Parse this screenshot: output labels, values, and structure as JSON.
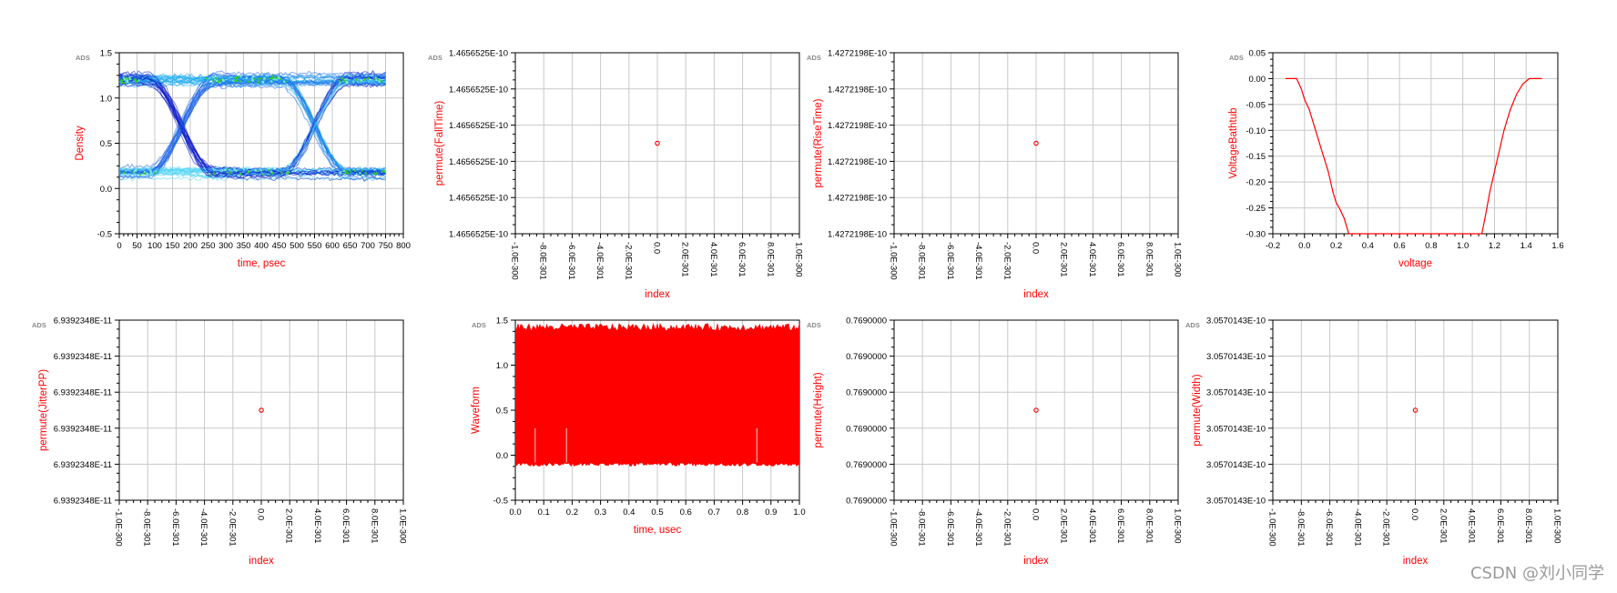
{
  "brand": "ADS",
  "watermark": "CSDN @刘小同学",
  "colors": {
    "label": "#ff0000",
    "trace": "#ff0000",
    "grid": "#c8c8c8",
    "axis": "#000000",
    "brand": "#8a8a8a",
    "eye_palette": [
      "#0a18c8",
      "#1e64e6",
      "#19a9f0",
      "#4fd3f5",
      "#7ef0c8",
      "#2ed11a"
    ]
  },
  "chart_data": [
    {
      "id": "density",
      "type": "heatmap",
      "description_tag": "eye-diagram",
      "xlabel": "time, psec",
      "ylabel": "Density",
      "xlim": [
        0,
        800
      ],
      "ylim": [
        -0.5,
        1.5
      ],
      "xticks": [
        "0",
        "50",
        "100",
        "150",
        "200",
        "250",
        "300",
        "350",
        "400",
        "450",
        "500",
        "550",
        "600",
        "650",
        "700",
        "750",
        "800"
      ],
      "yticks": [
        "-0.5",
        "0.0",
        "0.5",
        "1.0",
        "1.5"
      ],
      "eye": {
        "t_end": 750,
        "crossings": [
          175,
          550
        ],
        "high": 1.2,
        "low": 0.18,
        "cross_level": 0.65
      }
    },
    {
      "id": "falltime",
      "type": "scatter",
      "xlabel": "index",
      "ylabel": "permute(FallTime)",
      "xticks": [
        "-1.0E-300",
        "-8.0E-301",
        "-6.0E-301",
        "-4.0E-301",
        "-2.0E-301",
        "0.0",
        "2.0E-301",
        "4.0E-301",
        "6.0E-301",
        "8.0E-301",
        "1.0E-300"
      ],
      "yticks": [
        "1.4656525E-10",
        "1.4656525E-10",
        "1.4656525E-10",
        "1.4656525E-10",
        "1.4656525E-10",
        "1.4656525E-10"
      ],
      "points": [
        {
          "x": 0.0,
          "y": 1.4656525e-10
        }
      ]
    },
    {
      "id": "risetime",
      "type": "scatter",
      "xlabel": "index",
      "ylabel": "permute(RiseTime)",
      "xticks": [
        "-1.0E-300",
        "-8.0E-301",
        "-6.0E-301",
        "-4.0E-301",
        "-2.0E-301",
        "0.0",
        "2.0E-301",
        "4.0E-301",
        "6.0E-301",
        "8.0E-301",
        "1.0E-300"
      ],
      "yticks": [
        "1.4272198E-10",
        "1.4272198E-10",
        "1.4272198E-10",
        "1.4272198E-10",
        "1.4272198E-10",
        "1.4272198E-10"
      ],
      "points": [
        {
          "x": 0.0,
          "y": 1.4272198e-10
        }
      ]
    },
    {
      "id": "bathtub",
      "type": "line",
      "xlabel": "voltage",
      "ylabel": "VoltageBathtub",
      "xlim": [
        -0.2,
        1.6
      ],
      "ylim": [
        -0.3,
        0.05
      ],
      "xticks": [
        "-0.2",
        "0.0",
        "0.2",
        "0.4",
        "0.6",
        "0.8",
        "1.0",
        "1.2",
        "1.4",
        "1.6"
      ],
      "yticks": [
        "0.05",
        "0.00",
        "-0.05",
        "-0.10",
        "-0.15",
        "-0.20",
        "-0.25",
        "-0.30"
      ],
      "x": [
        -0.12,
        -0.05,
        -0.02,
        0.0,
        0.03,
        0.06,
        0.09,
        0.12,
        0.15,
        0.18,
        0.2,
        0.22,
        0.25,
        0.27,
        0.28,
        0.6,
        1.0,
        1.12,
        1.14,
        1.17,
        1.2,
        1.23,
        1.26,
        1.3,
        1.34,
        1.38,
        1.42,
        1.5
      ],
      "y": [
        0.0,
        0.0,
        -0.02,
        -0.04,
        -0.06,
        -0.09,
        -0.12,
        -0.15,
        -0.18,
        -0.22,
        -0.24,
        -0.25,
        -0.27,
        -0.29,
        -0.3,
        -0.3,
        -0.3,
        -0.3,
        -0.27,
        -0.22,
        -0.18,
        -0.14,
        -0.1,
        -0.06,
        -0.03,
        -0.01,
        0.0,
        0.0
      ]
    },
    {
      "id": "jitterpp",
      "type": "scatter",
      "xlabel": "index",
      "ylabel": "permute(JitterPP)",
      "xticks": [
        "-1.0E-300",
        "-8.0E-301",
        "-6.0E-301",
        "-4.0E-301",
        "-2.0E-301",
        "0.0",
        "2.0E-301",
        "4.0E-301",
        "6.0E-301",
        "8.0E-301",
        "1.0E-300"
      ],
      "yticks": [
        "6.9392348E-11",
        "6.9392348E-11",
        "6.9392348E-11",
        "6.9392348E-11",
        "6.9392348E-11",
        "6.9392348E-11"
      ],
      "points": [
        {
          "x": 0.0,
          "y": 6.9392348e-11
        }
      ]
    },
    {
      "id": "waveform",
      "type": "line",
      "xlabel": "time, usec",
      "ylabel": "Waveform",
      "xlim": [
        0.0,
        1.0
      ],
      "ylim": [
        -0.5,
        1.5
      ],
      "xticks": [
        "0.0",
        "0.1",
        "0.2",
        "0.3",
        "0.4",
        "0.5",
        "0.6",
        "0.7",
        "0.8",
        "0.9",
        "1.0"
      ],
      "yticks": [
        "-0.5",
        "0.0",
        "0.5",
        "1.0",
        "1.5"
      ],
      "signal": {
        "high": 1.38,
        "low": -0.08,
        "band_top": 1.46,
        "band_bottom": -0.12
      }
    },
    {
      "id": "height",
      "type": "scatter",
      "xlabel": "index",
      "ylabel": "permute(Height)",
      "xticks": [
        "-1.0E-300",
        "-8.0E-301",
        "-6.0E-301",
        "-4.0E-301",
        "-2.0E-301",
        "0.0",
        "2.0E-301",
        "4.0E-301",
        "6.0E-301",
        "8.0E-301",
        "1.0E-300"
      ],
      "yticks": [
        "0.7690000",
        "0.7690000",
        "0.7690000",
        "0.7690000",
        "0.7690000",
        "0.7690000"
      ],
      "points": [
        {
          "x": 0.0,
          "y": 0.769
        }
      ]
    },
    {
      "id": "width",
      "type": "scatter",
      "xlabel": "index",
      "ylabel": "permute(Width)",
      "xticks": [
        "-1.0E-300",
        "-8.0E-301",
        "-6.0E-301",
        "-4.0E-301",
        "-2.0E-301",
        "0.0",
        "2.0E-301",
        "4.0E-301",
        "6.0E-301",
        "8.0E-301",
        "1.0E-300"
      ],
      "yticks": [
        "3.0570143E-10",
        "3.0570143E-10",
        "3.0570143E-10",
        "3.0570143E-10",
        "3.0570143E-10",
        "3.0570143E-10"
      ],
      "points": [
        {
          "x": 0.0,
          "y": 3.0570143e-10
        }
      ]
    }
  ]
}
